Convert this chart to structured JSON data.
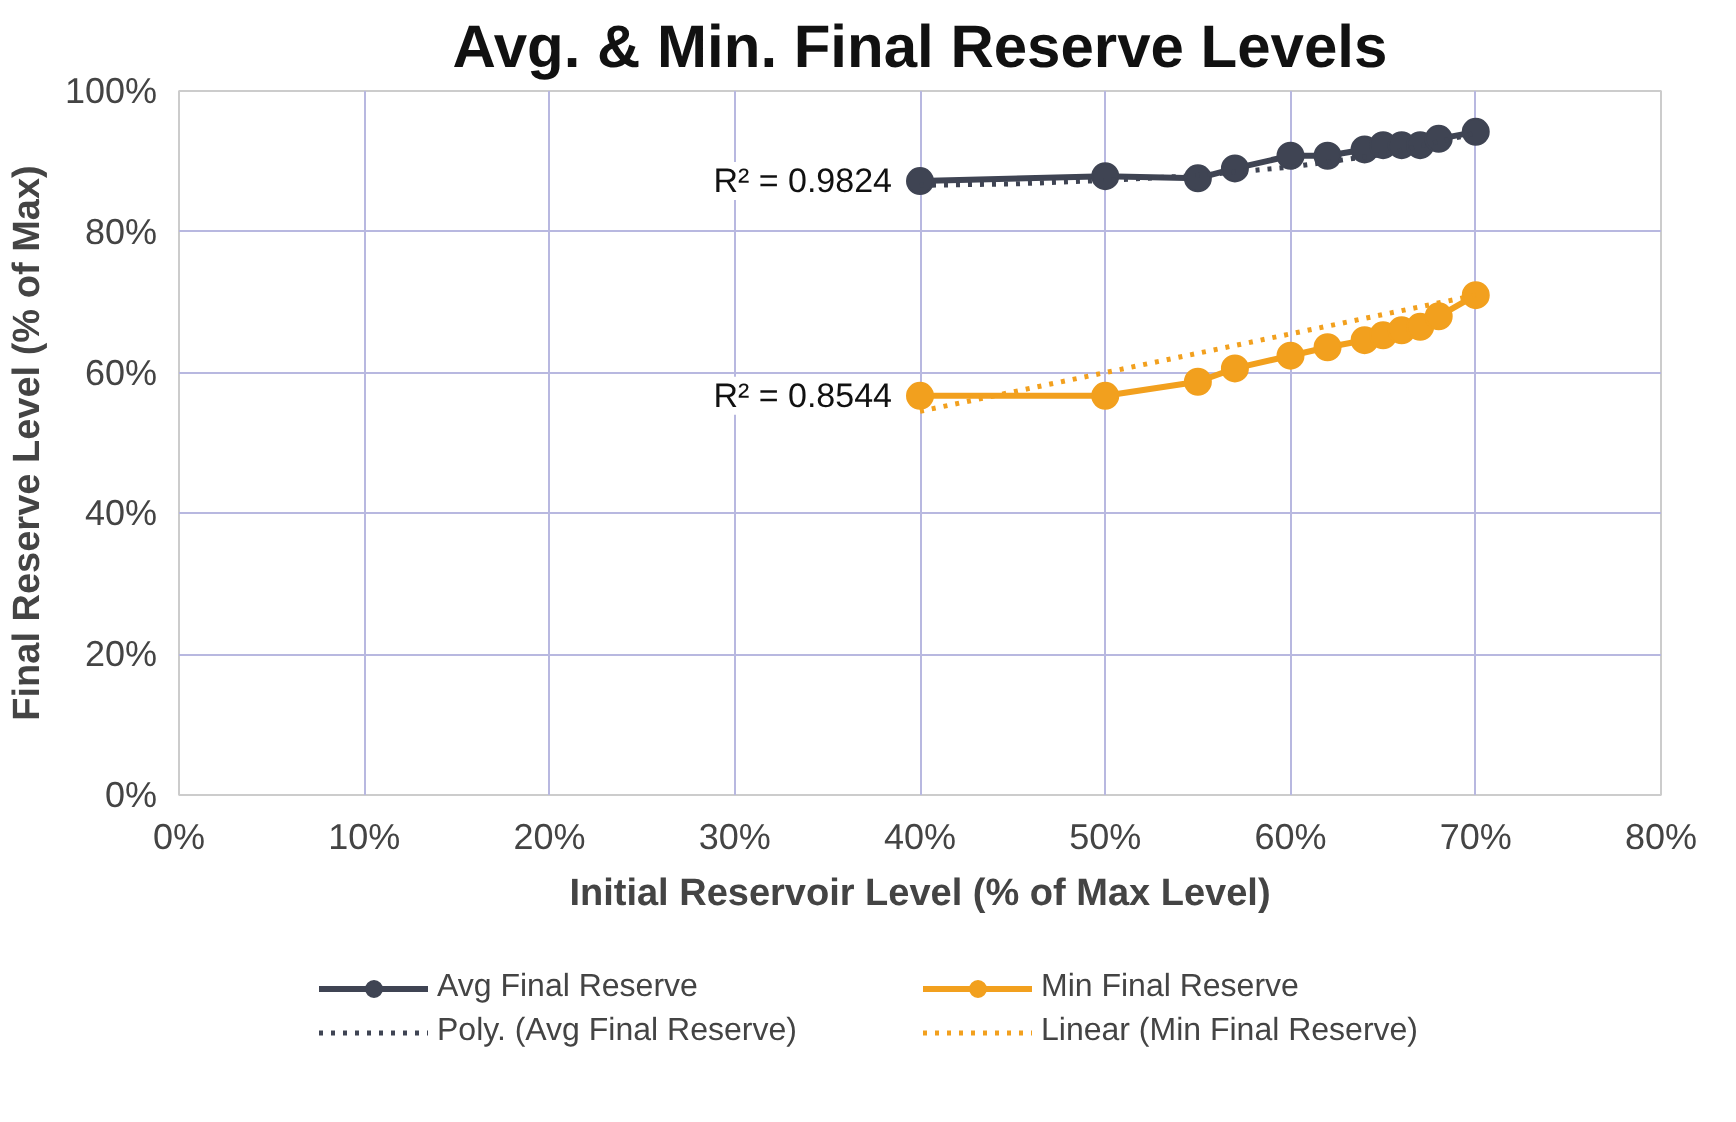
{
  "chart_data": {
    "type": "line",
    "title": "Avg. & Min. Final Reserve Levels",
    "xlabel": "Initial Reservoir Level (% of Max Level)",
    "ylabel": "Final Reserve Level (% of Max)",
    "xlim": [
      0,
      0.8
    ],
    "ylim": [
      0,
      1
    ],
    "xticks": [
      {
        "value": 0,
        "label": "0%"
      },
      {
        "value": 0.1,
        "label": "10%"
      },
      {
        "value": 0.2,
        "label": "20%"
      },
      {
        "value": 0.3,
        "label": "30%"
      },
      {
        "value": 0.4,
        "label": "40%"
      },
      {
        "value": 0.5,
        "label": "50%"
      },
      {
        "value": 0.6,
        "label": "60%"
      },
      {
        "value": 0.7,
        "label": "70%"
      },
      {
        "value": 0.8,
        "label": "80%"
      }
    ],
    "yticks": [
      {
        "value": 0,
        "label": "0%"
      },
      {
        "value": 0.2,
        "label": "20%"
      },
      {
        "value": 0.4,
        "label": "40%"
      },
      {
        "value": 0.6,
        "label": "60%"
      },
      {
        "value": 0.8,
        "label": "80%"
      },
      {
        "value": 1,
        "label": "100%"
      }
    ],
    "grid": true,
    "legend": "bottom",
    "marker": "circle",
    "series": [
      {
        "name": "Avg Final Reserve",
        "color": "#3f4453",
        "x": [
          0.4,
          0.5,
          0.55,
          0.57,
          0.6,
          0.62,
          0.64,
          0.65,
          0.66,
          0.67,
          0.68,
          0.7
        ],
        "values": [
          0.872,
          0.879,
          0.876,
          0.89,
          0.908,
          0.908,
          0.917,
          0.923,
          0.923,
          0.923,
          0.932,
          0.942
        ]
      },
      {
        "name": "Min Final Reserve",
        "color": "#f2a01e",
        "x": [
          0.4,
          0.5,
          0.55,
          0.57,
          0.6,
          0.62,
          0.64,
          0.65,
          0.66,
          0.67,
          0.68,
          0.7
        ],
        "values": [
          0.567,
          0.567,
          0.587,
          0.606,
          0.624,
          0.636,
          0.646,
          0.653,
          0.66,
          0.665,
          0.68,
          0.71
        ]
      },
      {
        "name": "Poly. (Avg Final Reserve)",
        "color": "#3f4453",
        "line_style": "dotted",
        "marker": "none",
        "x": [
          0.4,
          0.45,
          0.5,
          0.55,
          0.6,
          0.65,
          0.7
        ],
        "values": [
          0.866,
          0.868,
          0.873,
          0.88,
          0.892,
          0.91,
          0.94
        ]
      },
      {
        "name": "Linear (Min Final Reserve)",
        "color": "#f2a01e",
        "line_style": "dotted",
        "marker": "none",
        "x": [
          0.4,
          0.7
        ],
        "values": [
          0.545,
          0.71
        ]
      }
    ],
    "annotations": [
      "R² = 0.9824",
      "R² = 0.8544"
    ]
  }
}
